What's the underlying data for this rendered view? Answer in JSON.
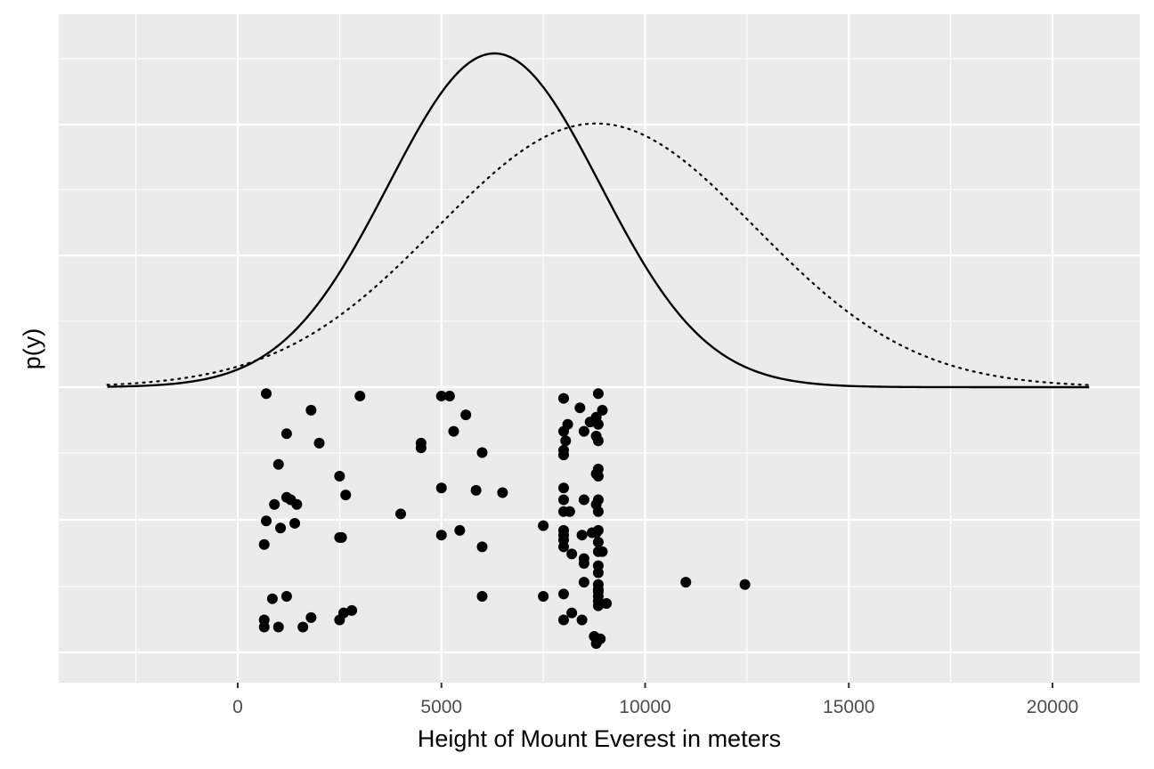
{
  "chart_data": {
    "type": "scatter",
    "title": "",
    "xlabel": "Height of Mount Everest in meters",
    "ylabel": "p(y)",
    "xlim": [
      -4400,
      22500
    ],
    "x_ticks": [
      0,
      5000,
      10000,
      15000,
      20000
    ],
    "x_tick_labels": [
      "0",
      "5000",
      "10000",
      "15000",
      "20000"
    ],
    "grid": true,
    "legend": "none",
    "y_tick_labels_shown": false,
    "background_color": "#ebebeb",
    "grid_color": "#ffffff",
    "mark_color": "#000000",
    "curves": [
      {
        "style": "solid",
        "distribution": "normal",
        "mean": 6300,
        "sd": 2600,
        "relative_peak_height": 1.0,
        "x_range": [
          -3200,
          20900
        ]
      },
      {
        "style": "dotted",
        "distribution": "normal",
        "mean": 8800,
        "sd": 3900,
        "relative_peak_height": 0.79,
        "x_range": [
          -3200,
          20900
        ]
      }
    ],
    "points_note": "jittered vertically below the density curves",
    "points": [
      {
        "x": 700,
        "j": 0.02
      },
      {
        "x": 3000,
        "j": 0.03
      },
      {
        "x": 5000,
        "j": 0.03
      },
      {
        "x": 5200,
        "j": 0.03
      },
      {
        "x": 1800,
        "j": 0.09
      },
      {
        "x": 5600,
        "j": 0.11
      },
      {
        "x": 1200,
        "j": 0.19
      },
      {
        "x": 5300,
        "j": 0.18
      },
      {
        "x": 2000,
        "j": 0.23
      },
      {
        "x": 4500,
        "j": 0.23
      },
      {
        "x": 4500,
        "j": 0.25
      },
      {
        "x": 6000,
        "j": 0.27
      },
      {
        "x": 1000,
        "j": 0.32
      },
      {
        "x": 2500,
        "j": 0.37
      },
      {
        "x": 5000,
        "j": 0.42
      },
      {
        "x": 5850,
        "j": 0.43
      },
      {
        "x": 6500,
        "j": 0.44
      },
      {
        "x": 2650,
        "j": 0.45
      },
      {
        "x": 1200,
        "j": 0.46
      },
      {
        "x": 1300,
        "j": 0.47
      },
      {
        "x": 900,
        "j": 0.49
      },
      {
        "x": 1450,
        "j": 0.49
      },
      {
        "x": 4000,
        "j": 0.53
      },
      {
        "x": 700,
        "j": 0.56
      },
      {
        "x": 1400,
        "j": 0.57
      },
      {
        "x": 1050,
        "j": 0.59
      },
      {
        "x": 7500,
        "j": 0.58
      },
      {
        "x": 5450,
        "j": 0.6
      },
      {
        "x": 5000,
        "j": 0.62
      },
      {
        "x": 2500,
        "j": 0.63
      },
      {
        "x": 2550,
        "j": 0.63
      },
      {
        "x": 650,
        "j": 0.66
      },
      {
        "x": 6000,
        "j": 0.67
      },
      {
        "x": 11000,
        "j": 0.82
      },
      {
        "x": 12450,
        "j": 0.83
      },
      {
        "x": 1200,
        "j": 0.88
      },
      {
        "x": 850,
        "j": 0.89
      },
      {
        "x": 6000,
        "j": 0.88
      },
      {
        "x": 7500,
        "j": 0.88
      },
      {
        "x": 2800,
        "j": 0.94
      },
      {
        "x": 2600,
        "j": 0.95
      },
      {
        "x": 1800,
        "j": 0.97
      },
      {
        "x": 650,
        "j": 0.98
      },
      {
        "x": 2500,
        "j": 0.98
      },
      {
        "x": 650,
        "j": 1.01
      },
      {
        "x": 1000,
        "j": 1.01
      },
      {
        "x": 1600,
        "j": 1.01
      },
      {
        "x": 8000,
        "j": 0.04
      },
      {
        "x": 8850,
        "j": 0.02
      },
      {
        "x": 8400,
        "j": 0.08
      },
      {
        "x": 8950,
        "j": 0.09
      },
      {
        "x": 8800,
        "j": 0.12
      },
      {
        "x": 8650,
        "j": 0.14
      },
      {
        "x": 8850,
        "j": 0.15
      },
      {
        "x": 8100,
        "j": 0.15
      },
      {
        "x": 8000,
        "j": 0.18
      },
      {
        "x": 8500,
        "j": 0.18
      },
      {
        "x": 8800,
        "j": 0.2
      },
      {
        "x": 8850,
        "j": 0.22
      },
      {
        "x": 8050,
        "j": 0.22
      },
      {
        "x": 8000,
        "j": 0.26
      },
      {
        "x": 8000,
        "j": 0.28
      },
      {
        "x": 8850,
        "j": 0.34
      },
      {
        "x": 8800,
        "j": 0.36
      },
      {
        "x": 8850,
        "j": 0.37
      },
      {
        "x": 8000,
        "j": 0.42
      },
      {
        "x": 8000,
        "j": 0.47
      },
      {
        "x": 8500,
        "j": 0.47
      },
      {
        "x": 8850,
        "j": 0.47
      },
      {
        "x": 8800,
        "j": 0.49
      },
      {
        "x": 8850,
        "j": 0.52
      },
      {
        "x": 8000,
        "j": 0.52
      },
      {
        "x": 8150,
        "j": 0.52
      },
      {
        "x": 8000,
        "j": 0.6
      },
      {
        "x": 8850,
        "j": 0.6
      },
      {
        "x": 8700,
        "j": 0.61
      },
      {
        "x": 8800,
        "j": 0.61
      },
      {
        "x": 8450,
        "j": 0.62
      },
      {
        "x": 8000,
        "j": 0.62
      },
      {
        "x": 8000,
        "j": 0.64
      },
      {
        "x": 8850,
        "j": 0.65
      },
      {
        "x": 8000,
        "j": 0.67
      },
      {
        "x": 8850,
        "j": 0.69
      },
      {
        "x": 8950,
        "j": 0.69
      },
      {
        "x": 8200,
        "j": 0.7
      },
      {
        "x": 8500,
        "j": 0.72
      },
      {
        "x": 8500,
        "j": 0.74
      },
      {
        "x": 8850,
        "j": 0.75
      },
      {
        "x": 8850,
        "j": 0.78
      },
      {
        "x": 8500,
        "j": 0.82
      },
      {
        "x": 8850,
        "j": 0.83
      },
      {
        "x": 8850,
        "j": 0.85
      },
      {
        "x": 8850,
        "j": 0.86
      },
      {
        "x": 8850,
        "j": 0.88
      },
      {
        "x": 8850,
        "j": 0.9
      },
      {
        "x": 8000,
        "j": 0.87
      },
      {
        "x": 9050,
        "j": 0.91
      },
      {
        "x": 8850,
        "j": 0.92
      },
      {
        "x": 8200,
        "j": 0.95
      },
      {
        "x": 8000,
        "j": 0.98
      },
      {
        "x": 8450,
        "j": 0.98
      },
      {
        "x": 8750,
        "j": 1.05
      },
      {
        "x": 8850,
        "j": 1.06
      },
      {
        "x": 8800,
        "j": 1.08
      },
      {
        "x": 8900,
        "j": 1.06
      }
    ]
  }
}
